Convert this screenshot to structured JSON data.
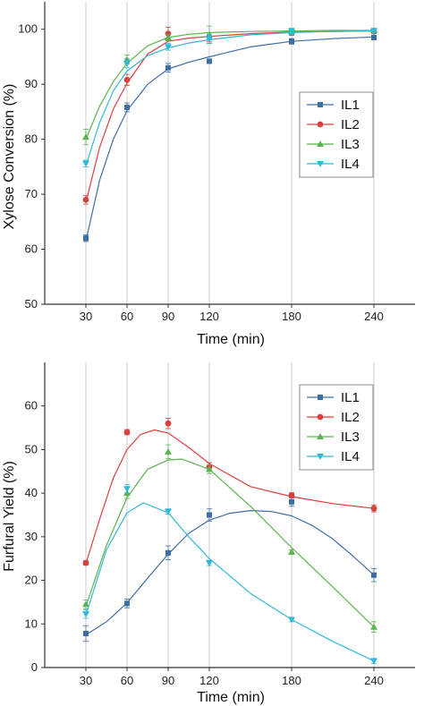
{
  "chart_data": [
    {
      "type": "line",
      "title": "",
      "xlabel": "Time (min)",
      "ylabel": "Xylose Conversion (%)",
      "x": [
        30,
        60,
        90,
        120,
        180,
        240
      ],
      "xticks": [
        30,
        60,
        90,
        120,
        180,
        240
      ],
      "xlim": [
        0,
        270
      ],
      "ylim": [
        50,
        105
      ],
      "yticks": [
        50,
        60,
        70,
        80,
        90,
        100
      ],
      "grid": "vertical",
      "legend": "right",
      "series": [
        {
          "name": "IL1",
          "marker": "square",
          "color": "#3f6ea5",
          "values": [
            62.0,
            85.8,
            93.0,
            94.2,
            97.8,
            98.5
          ],
          "errors": [
            0.6,
            0.8,
            0.8,
            0.4,
            0.5,
            0.4
          ],
          "curve": [
            [
              30,
              61.5
            ],
            [
              40,
              72.5
            ],
            [
              50,
              80.0
            ],
            [
              60,
              85.2
            ],
            [
              75,
              90.0
            ],
            [
              90,
              92.8
            ],
            [
              105,
              94.0
            ],
            [
              120,
              95.0
            ],
            [
              150,
              96.8
            ],
            [
              180,
              97.8
            ],
            [
              210,
              98.3
            ],
            [
              240,
              98.6
            ]
          ]
        },
        {
          "name": "IL2",
          "marker": "circle",
          "color": "#d94040",
          "values": [
            69.0,
            90.8,
            99.2,
            98.6,
            99.4,
            99.6
          ],
          "errors": [
            0.8,
            1.0,
            1.2,
            0.8,
            0.5,
            0.4
          ],
          "curve": [
            [
              30,
              68.5
            ],
            [
              40,
              78.5
            ],
            [
              50,
              85.5
            ],
            [
              60,
              90.2
            ],
            [
              75,
              95.5
            ],
            [
              90,
              97.8
            ],
            [
              105,
              98.4
            ],
            [
              120,
              98.7
            ],
            [
              150,
              99.2
            ],
            [
              180,
              99.5
            ],
            [
              210,
              99.6
            ],
            [
              240,
              99.7
            ]
          ]
        },
        {
          "name": "IL3",
          "marker": "triangle-up",
          "color": "#5ab44f",
          "values": [
            80.4,
            94.5,
            98.5,
            99.0,
            99.6,
            99.8
          ],
          "errors": [
            1.4,
            0.8,
            0.6,
            1.6,
            0.6,
            0.4
          ],
          "curve": [
            [
              30,
              80.0
            ],
            [
              40,
              86.0
            ],
            [
              50,
              90.5
            ],
            [
              60,
              93.8
            ],
            [
              75,
              97.0
            ],
            [
              90,
              98.5
            ],
            [
              105,
              99.1
            ],
            [
              120,
              99.4
            ],
            [
              150,
              99.6
            ],
            [
              180,
              99.7
            ],
            [
              210,
              99.8
            ],
            [
              240,
              99.8
            ]
          ]
        },
        {
          "name": "IL4",
          "marker": "triangle-down",
          "color": "#33b8d6",
          "values": [
            75.6,
            93.8,
            96.8,
            98.3,
            99.6,
            99.7
          ],
          "errors": [
            0.6,
            0.8,
            0.6,
            0.8,
            0.5,
            0.4
          ],
          "curve": [
            [
              30,
              75.2
            ],
            [
              40,
              83.0
            ],
            [
              50,
              88.8
            ],
            [
              60,
              92.4
            ],
            [
              75,
              95.2
            ],
            [
              90,
              96.6
            ],
            [
              105,
              97.5
            ],
            [
              120,
              98.1
            ],
            [
              150,
              99.0
            ],
            [
              180,
              99.4
            ],
            [
              210,
              99.6
            ],
            [
              240,
              99.7
            ]
          ]
        }
      ]
    },
    {
      "type": "line",
      "title": "",
      "xlabel": "Time (min)",
      "ylabel": "Furfural Yield (%)",
      "x": [
        30,
        60,
        90,
        120,
        180,
        240
      ],
      "xticks": [
        30,
        60,
        90,
        120,
        180,
        240
      ],
      "xlim": [
        0,
        270
      ],
      "ylim": [
        0,
        70
      ],
      "yticks": [
        0,
        10,
        20,
        30,
        40,
        50,
        60
      ],
      "grid": "vertical",
      "legend": "top-right",
      "series": [
        {
          "name": "IL1",
          "marker": "square",
          "color": "#3f6ea5",
          "values": [
            7.8,
            14.7,
            26.3,
            35.0,
            38.0,
            21.2
          ],
          "errors": [
            1.8,
            1.0,
            1.6,
            1.4,
            1.0,
            1.5
          ],
          "curve": [
            [
              30,
              7.5
            ],
            [
              45,
              10.5
            ],
            [
              60,
              14.8
            ],
            [
              75,
              20.5
            ],
            [
              90,
              26.0
            ],
            [
              105,
              30.8
            ],
            [
              120,
              33.8
            ],
            [
              135,
              35.4
            ],
            [
              150,
              36.0
            ],
            [
              165,
              35.8
            ],
            [
              180,
              34.8
            ],
            [
              195,
              32.6
            ],
            [
              210,
              29.5
            ],
            [
              225,
              25.5
            ],
            [
              240,
              21.2
            ]
          ]
        },
        {
          "name": "IL2",
          "marker": "circle",
          "color": "#d94040",
          "values": [
            24.0,
            54.0,
            56.0,
            46.0,
            39.5,
            36.5
          ],
          "errors": [
            0.5,
            0.6,
            1.2,
            1.0,
            0.6,
            0.8
          ],
          "curve": [
            [
              30,
              23.8
            ],
            [
              40,
              34.0
            ],
            [
              50,
              43.5
            ],
            [
              60,
              50.0
            ],
            [
              70,
              53.5
            ],
            [
              80,
              54.5
            ],
            [
              90,
              53.8
            ],
            [
              105,
              50.5
            ],
            [
              120,
              46.8
            ],
            [
              150,
              41.5
            ],
            [
              180,
              39.2
            ],
            [
              210,
              37.6
            ],
            [
              240,
              36.5
            ]
          ]
        },
        {
          "name": "IL3",
          "marker": "triangle-up",
          "color": "#5ab44f",
          "values": [
            14.5,
            40.0,
            49.5,
            45.5,
            26.5,
            9.3
          ],
          "errors": [
            1.0,
            1.2,
            1.6,
            1.0,
            0.5,
            1.2
          ],
          "curve": [
            [
              30,
              14.0
            ],
            [
              45,
              28.0
            ],
            [
              60,
              39.0
            ],
            [
              75,
              45.5
            ],
            [
              90,
              47.6
            ],
            [
              100,
              47.8
            ],
            [
              120,
              45.5
            ],
            [
              150,
              37.0
            ],
            [
              180,
              27.5
            ],
            [
              210,
              18.5
            ],
            [
              240,
              9.3
            ]
          ]
        },
        {
          "name": "IL4",
          "marker": "triangle-down",
          "color": "#33b8d6",
          "values": [
            12.3,
            41.0,
            35.8,
            24.0,
            11.0,
            1.5
          ],
          "errors": [
            1.0,
            1.0,
            0.6,
            0.6,
            0.5,
            0.6
          ],
          "curve": [
            [
              30,
              12.0
            ],
            [
              45,
              27.0
            ],
            [
              60,
              35.5
            ],
            [
              72,
              37.8
            ],
            [
              90,
              35.5
            ],
            [
              105,
              30.0
            ],
            [
              120,
              25.0
            ],
            [
              150,
              17.0
            ],
            [
              180,
              11.0
            ],
            [
              210,
              6.0
            ],
            [
              240,
              1.5
            ]
          ]
        }
      ]
    }
  ]
}
